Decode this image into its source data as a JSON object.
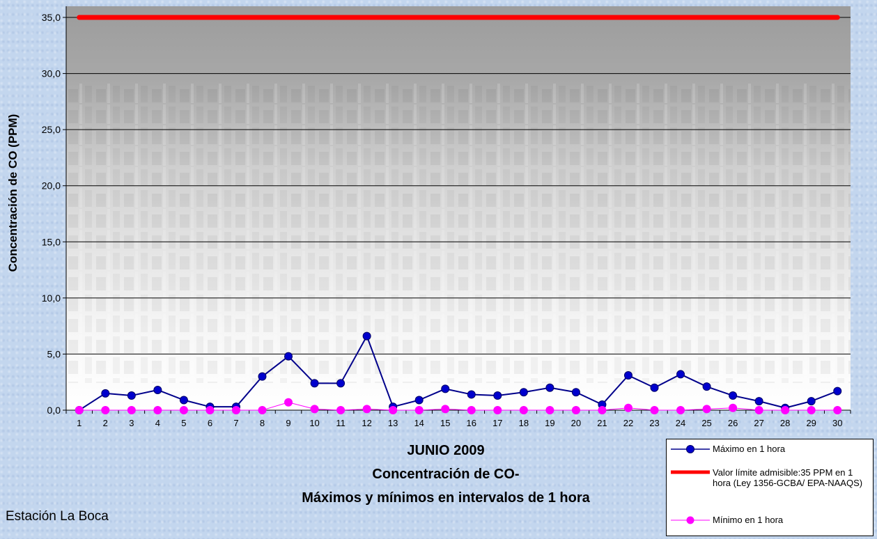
{
  "chart_data": {
    "type": "line",
    "categories": [
      "1",
      "2",
      "3",
      "4",
      "5",
      "6",
      "7",
      "8",
      "9",
      "10",
      "11",
      "12",
      "13",
      "14",
      "15",
      "16",
      "17",
      "18",
      "19",
      "20",
      "21",
      "22",
      "23",
      "24",
      "25",
      "26",
      "27",
      "28",
      "29",
      "30"
    ],
    "ylabel": "Concentración de CO (PPM)",
    "ylim": [
      0,
      35
    ],
    "yticks": [
      "0,0",
      "5,0",
      "10,0",
      "15,0",
      "20,0",
      "25,0",
      "30,0",
      "35,0"
    ],
    "grid": true,
    "legend_position": "bottom-right",
    "series": [
      {
        "name": "Máximo en 1 hora",
        "color": "#00008b",
        "values": [
          0.0,
          1.5,
          1.3,
          1.8,
          0.9,
          0.3,
          0.3,
          3.0,
          4.8,
          2.4,
          2.4,
          6.6,
          0.3,
          0.9,
          1.9,
          1.4,
          1.3,
          1.6,
          2.0,
          1.6,
          0.5,
          3.1,
          2.0,
          3.2,
          2.1,
          1.3,
          0.8,
          0.2,
          0.8,
          1.7
        ]
      },
      {
        "name": "Valor límite admisible:35 PPM en 1 hora (Ley 1356-GCBA/ EPA-NAAQS)",
        "color": "#ff0000",
        "values": [
          35,
          35,
          35,
          35,
          35,
          35,
          35,
          35,
          35,
          35,
          35,
          35,
          35,
          35,
          35,
          35,
          35,
          35,
          35,
          35,
          35,
          35,
          35,
          35,
          35,
          35,
          35,
          35,
          35,
          35
        ]
      },
      {
        "name": "Mínimo en 1 hora",
        "color": "#ff00ff",
        "values": [
          0.0,
          0.0,
          0.0,
          0.0,
          0.0,
          0.0,
          0.0,
          0.0,
          0.7,
          0.1,
          0.0,
          0.1,
          0.0,
          0.0,
          0.1,
          0.0,
          0.0,
          0.0,
          0.0,
          0.0,
          0.0,
          0.2,
          0.0,
          0.0,
          0.1,
          0.2,
          0.0,
          0.0,
          0.0,
          0.0
        ]
      }
    ]
  },
  "title_lines": [
    "JUNIO 2009",
    "Concentración de CO-",
    "Máximos y mínimos en intervalos de 1 hora"
  ],
  "station": "Estación La Boca"
}
